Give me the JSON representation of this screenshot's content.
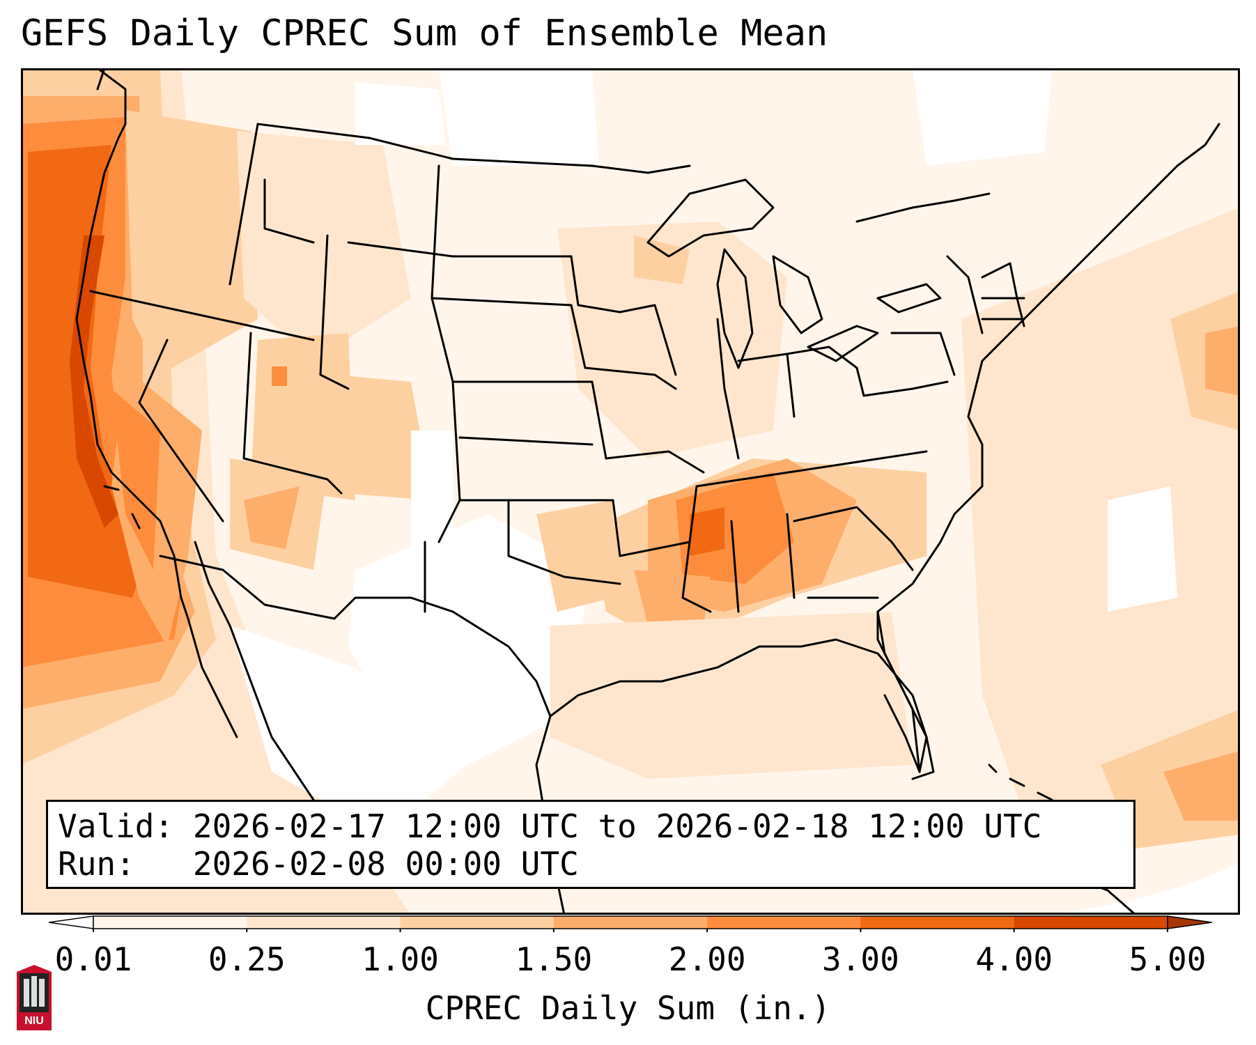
{
  "title": "GEFS Daily CPREC Sum of Ensemble Mean",
  "info": {
    "valid_label": "Valid:",
    "valid_value": "2026-02-17 12:00 UTC to 2026-02-18 12:00 UTC",
    "run_label": "Run:",
    "run_value": "2026-02-08 00:00 UTC"
  },
  "colorbar": {
    "label": "CPREC Daily Sum (in.)",
    "ticks": [
      "0.01",
      "0.25",
      "1.00",
      "1.50",
      "2.00",
      "3.00",
      "4.00",
      "5.00"
    ],
    "colors": [
      "#fff5eb",
      "#fee6ce",
      "#fdd0a2",
      "#fdae6b",
      "#fd8d3c",
      "#f16913",
      "#d94801"
    ],
    "under_color": "#ffffff",
    "over_color": "#a63603"
  },
  "logo": {
    "text": "NIU"
  },
  "colors": {
    "land_low": "#fff5eb",
    "light": "#fee6ce",
    "medium": "#fdd0a2",
    "orange": "#fdae6b",
    "dark_orange": "#f16913",
    "deep": "#d94801",
    "logo_red": "#c8102e"
  }
}
